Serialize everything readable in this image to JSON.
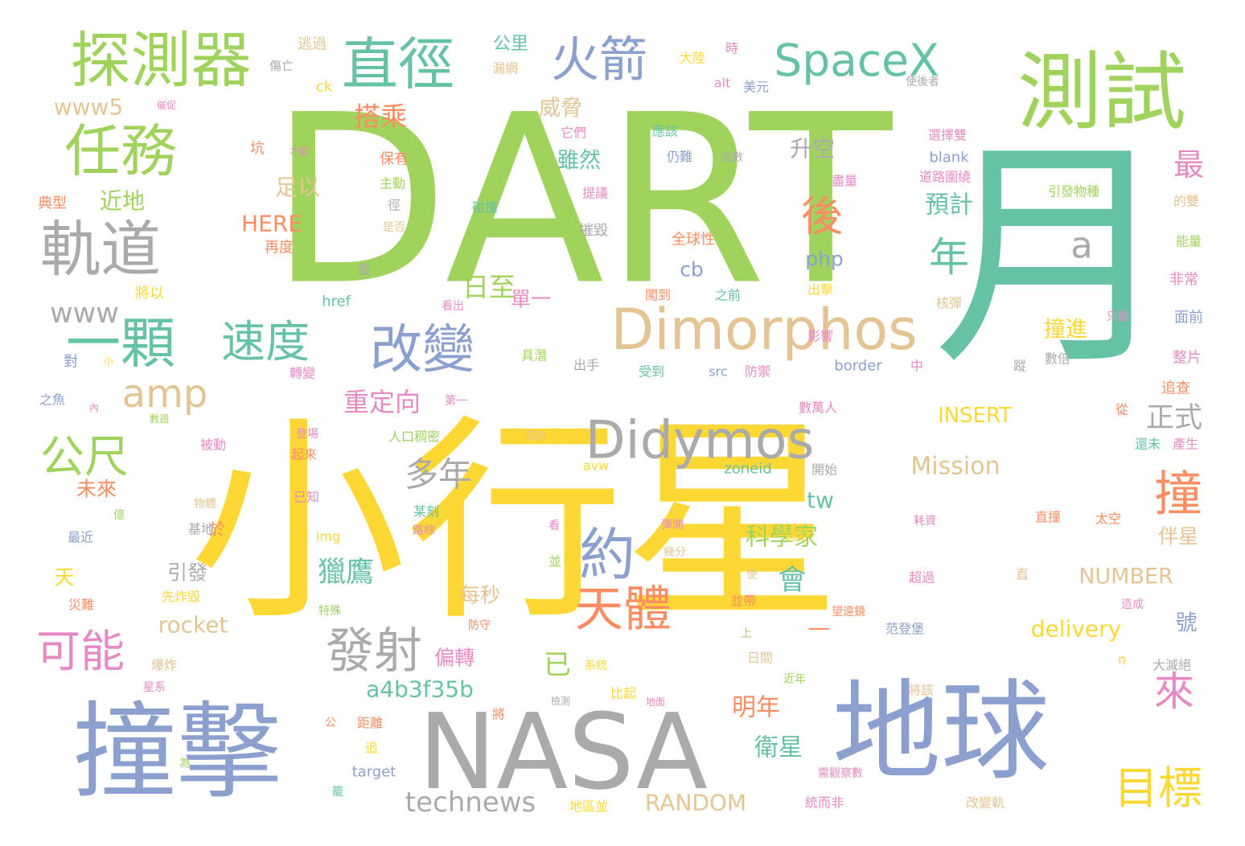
{
  "palette": {
    "green": "#9fd35b",
    "yellow": "#fdd835",
    "gray": "#aaaaaa",
    "blue": "#8ca0cf",
    "tan": "#e5c494",
    "teal": "#66c2a5",
    "orange": "#fc8d62",
    "pink": "#e78ac3"
  },
  "words": [
    {
      "text": "DART",
      "color": "green"
    },
    {
      "text": "小行星",
      "color": "yellow"
    },
    {
      "text": "月",
      "color": "teal"
    },
    {
      "text": "撞擊",
      "color": "blue"
    },
    {
      "text": "NASA",
      "color": "gray"
    },
    {
      "text": "地球",
      "color": "blue"
    },
    {
      "text": "測試",
      "color": "green"
    },
    {
      "text": "探測器",
      "color": "green"
    },
    {
      "text": "直徑",
      "color": "teal"
    },
    {
      "text": "火箭",
      "color": "blue"
    },
    {
      "text": "SpaceX",
      "color": "teal"
    },
    {
      "text": "任務",
      "color": "green"
    },
    {
      "text": "軌道",
      "color": "gray"
    },
    {
      "text": "一顆",
      "color": "teal"
    },
    {
      "text": "速度",
      "color": "teal"
    },
    {
      "text": "改變",
      "color": "blue"
    },
    {
      "text": "Dimorphos",
      "color": "tan"
    },
    {
      "text": "Didymos",
      "color": "gray"
    },
    {
      "text": "amp",
      "color": "tan"
    },
    {
      "text": "公尺",
      "color": "green"
    },
    {
      "text": "約",
      "color": "blue"
    },
    {
      "text": "天體",
      "color": "orange"
    },
    {
      "text": "發射",
      "color": "gray"
    },
    {
      "text": "可能",
      "color": "pink"
    },
    {
      "text": "撞",
      "color": "orange"
    },
    {
      "text": "來",
      "color": "pink"
    },
    {
      "text": "目標",
      "color": "yellow"
    },
    {
      "text": "後",
      "color": "orange"
    },
    {
      "text": "年",
      "color": "teal"
    },
    {
      "text": "a",
      "color": "gray"
    },
    {
      "text": "最",
      "color": "pink"
    },
    {
      "text": "正式",
      "color": "gray"
    },
    {
      "text": "多年",
      "color": "gray"
    },
    {
      "text": "重定向",
      "color": "pink"
    },
    {
      "text": "獵鷹",
      "color": "teal"
    },
    {
      "text": "已",
      "color": "green"
    },
    {
      "text": "technews",
      "color": "gray"
    },
    {
      "text": "RANDOM",
      "color": "tan"
    },
    {
      "text": "a4b3f35b",
      "color": "teal"
    },
    {
      "text": "明年",
      "color": "orange"
    },
    {
      "text": "衛星",
      "color": "teal"
    },
    {
      "text": "科學家",
      "color": "green"
    },
    {
      "text": "搭乘",
      "color": "orange"
    },
    {
      "text": "威脅",
      "color": "tan"
    },
    {
      "text": "雖然",
      "color": "teal"
    },
    {
      "text": "升空",
      "color": "gray"
    },
    {
      "text": "預計",
      "color": "teal"
    },
    {
      "text": "日至",
      "color": "green"
    },
    {
      "text": "足以",
      "color": "tan"
    },
    {
      "text": "www5",
      "color": "tan"
    },
    {
      "text": "www",
      "color": "gray"
    },
    {
      "text": "近地",
      "color": "green"
    },
    {
      "text": "HERE",
      "color": "orange"
    },
    {
      "text": "Mission",
      "color": "tan"
    },
    {
      "text": "INSERT",
      "color": "yellow"
    },
    {
      "text": "delivery",
      "color": "yellow"
    },
    {
      "text": "NUMBER",
      "color": "tan"
    },
    {
      "text": "rocket",
      "color": "tan"
    },
    {
      "text": "伴星",
      "color": "tan"
    },
    {
      "text": "號",
      "color": "blue"
    },
    {
      "text": "撞進",
      "color": "yellow"
    },
    {
      "text": "偏轉",
      "color": "pink"
    },
    {
      "text": "每秒",
      "color": "tan"
    },
    {
      "text": "單一",
      "color": "pink"
    },
    {
      "text": "會",
      "color": "teal"
    },
    {
      "text": "tw",
      "color": "teal"
    },
    {
      "text": "php",
      "color": "blue"
    },
    {
      "text": "cb",
      "color": "blue"
    },
    {
      "text": "引發",
      "color": "gray"
    },
    {
      "text": "天",
      "color": "yellow"
    },
    {
      "text": "未來",
      "color": "orange"
    },
    {
      "text": "於",
      "color": "orange"
    },
    {
      "text": "對",
      "color": "blue"
    },
    {
      "text": "公里",
      "color": "teal"
    },
    {
      "text": "逃過",
      "color": "tan"
    },
    {
      "text": "漏網",
      "color": "tan"
    },
    {
      "text": "傷亡",
      "color": "gray"
    },
    {
      "text": "大陸",
      "color": "yellow"
    },
    {
      "text": "時",
      "color": "pink"
    },
    {
      "text": "美元",
      "color": "blue"
    },
    {
      "text": "alt",
      "color": "pink"
    },
    {
      "text": "ck",
      "color": "yellow"
    },
    {
      "text": "使後者",
      "color": "gray"
    },
    {
      "text": "它們",
      "color": "pink"
    },
    {
      "text": "應該",
      "color": "teal"
    },
    {
      "text": "仍難",
      "color": "blue"
    },
    {
      "text": "或數",
      "color": "gray"
    },
    {
      "text": "選擇雙",
      "color": "pink"
    },
    {
      "text": "blank",
      "color": "blue"
    },
    {
      "text": "道路圍繞",
      "color": "pink"
    },
    {
      "text": "盡量",
      "color": "pink"
    },
    {
      "text": "引發物種",
      "color": "green"
    },
    {
      "text": "碰撞",
      "color": "teal"
    },
    {
      "text": "提議",
      "color": "pink"
    },
    {
      "text": "坑",
      "color": "orange"
    },
    {
      "text": "才能",
      "color": "pink"
    },
    {
      "text": "保有",
      "color": "orange"
    },
    {
      "text": "主動",
      "color": "green"
    },
    {
      "text": "典型",
      "color": "orange"
    },
    {
      "text": "徑",
      "color": "gray"
    },
    {
      "text": "是否",
      "color": "tan"
    },
    {
      "text": "摧毀",
      "color": "gray"
    },
    {
      "text": "全球性",
      "color": "orange"
    },
    {
      "text": "再度",
      "color": "orange"
    },
    {
      "text": "將以",
      "color": "yellow"
    },
    {
      "text": "雙",
      "color": "gray"
    },
    {
      "text": "href",
      "color": "teal"
    },
    {
      "text": "看出",
      "color": "pink"
    },
    {
      "text": "闖到",
      "color": "orange"
    },
    {
      "text": "之前",
      "color": "teal"
    },
    {
      "text": "出擊",
      "color": "yellow"
    },
    {
      "text": "核彈",
      "color": "tan"
    },
    {
      "text": "非常",
      "color": "pink"
    },
    {
      "text": "面前",
      "color": "blue"
    },
    {
      "text": "能量",
      "color": "green"
    },
    {
      "text": "的雙",
      "color": "tan"
    },
    {
      "text": "只能",
      "color": "pink"
    },
    {
      "text": "整片",
      "color": "pink"
    },
    {
      "text": "追查",
      "color": "orange"
    },
    {
      "text": "從",
      "color": "orange"
    },
    {
      "text": "還未",
      "color": "teal"
    },
    {
      "text": "產生",
      "color": "pink"
    },
    {
      "text": "具潛",
      "color": "green"
    },
    {
      "text": "出手",
      "color": "gray"
    },
    {
      "text": "受到",
      "color": "teal"
    },
    {
      "text": "src",
      "color": "blue"
    },
    {
      "text": "防禦",
      "color": "pink"
    },
    {
      "text": "border",
      "color": "blue"
    },
    {
      "text": "中",
      "color": "pink"
    },
    {
      "text": "影響",
      "color": "pink"
    },
    {
      "text": "數倍",
      "color": "gray"
    },
    {
      "text": "蹤",
      "color": "gray"
    },
    {
      "text": "之魚",
      "color": "blue"
    },
    {
      "text": "內",
      "color": "pink"
    },
    {
      "text": "小",
      "color": "yellow"
    },
    {
      "text": "數週",
      "color": "green"
    },
    {
      "text": "轉變",
      "color": "pink"
    },
    {
      "text": "第一",
      "color": "pink"
    },
    {
      "text": "數萬人",
      "color": "pink"
    },
    {
      "text": "被動",
      "color": "pink"
    },
    {
      "text": "登場",
      "color": "pink"
    },
    {
      "text": "起來",
      "color": "orange"
    },
    {
      "text": "人口稠密",
      "color": "green"
    },
    {
      "text": "因為",
      "color": "tan"
    },
    {
      "text": "zoneid",
      "color": "teal"
    },
    {
      "text": "開始",
      "color": "gray"
    },
    {
      "text": "avw",
      "color": "yellow"
    },
    {
      "text": "已知",
      "color": "pink"
    },
    {
      "text": "物體",
      "color": "tan"
    },
    {
      "text": "億",
      "color": "green"
    },
    {
      "text": "基地",
      "color": "gray"
    },
    {
      "text": "最近",
      "color": "blue"
    },
    {
      "text": "某刻",
      "color": "teal"
    },
    {
      "text": "路線",
      "color": "pink"
    },
    {
      "text": "img",
      "color": "yellow"
    },
    {
      "text": "看",
      "color": "pink"
    },
    {
      "text": "並",
      "color": "green"
    },
    {
      "text": "彈開",
      "color": "pink"
    },
    {
      "text": "幾分",
      "color": "tan"
    },
    {
      "text": "耗資",
      "color": "pink"
    },
    {
      "text": "週期",
      "color": "yellow"
    },
    {
      "text": "直撞",
      "color": "orange"
    },
    {
      "text": "太空",
      "color": "orange"
    },
    {
      "text": "直",
      "color": "tan"
    },
    {
      "text": "使",
      "color": "tan"
    },
    {
      "text": "並帶",
      "color": "orange"
    },
    {
      "text": "超過",
      "color": "pink"
    },
    {
      "text": "造成",
      "color": "pink"
    },
    {
      "text": "先炸毀",
      "color": "yellow"
    },
    {
      "text": "災難",
      "color": "orange"
    },
    {
      "text": "防守",
      "color": "orange"
    },
    {
      "text": "特殊",
      "color": "green"
    },
    {
      "text": "望遠鏡",
      "color": "orange"
    },
    {
      "text": "范登堡",
      "color": "blue"
    },
    {
      "text": "上",
      "color": "green"
    },
    {
      "text": "爆炸",
      "color": "tan"
    },
    {
      "text": "系統",
      "color": "yellow"
    },
    {
      "text": "日間",
      "color": "tan"
    },
    {
      "text": "星系",
      "color": "pink"
    },
    {
      "text": "比起",
      "color": "yellow"
    },
    {
      "text": "近年",
      "color": "green"
    },
    {
      "text": "大滅絕",
      "color": "gray"
    },
    {
      "text": "將該",
      "color": "tan"
    },
    {
      "text": "將",
      "color": "orange"
    },
    {
      "text": "檢測",
      "color": "gray"
    },
    {
      "text": "地面",
      "color": "pink"
    },
    {
      "text": "公",
      "color": "orange"
    },
    {
      "text": "距離",
      "color": "orange"
    },
    {
      "text": "追",
      "color": "yellow"
    },
    {
      "text": "為",
      "color": "green"
    },
    {
      "text": "target",
      "color": "blue"
    },
    {
      "text": "籠",
      "color": "teal"
    },
    {
      "text": "需觀察數",
      "color": "pink"
    },
    {
      "text": "統而非",
      "color": "pink"
    },
    {
      "text": "改變軌",
      "color": "tan"
    },
    {
      "text": "地區並",
      "color": "yellow"
    },
    {
      "text": "n",
      "color": "yellow"
    },
    {
      "text": "—",
      "color": "orange"
    },
    {
      "text": "催促",
      "color": "pink"
    }
  ]
}
